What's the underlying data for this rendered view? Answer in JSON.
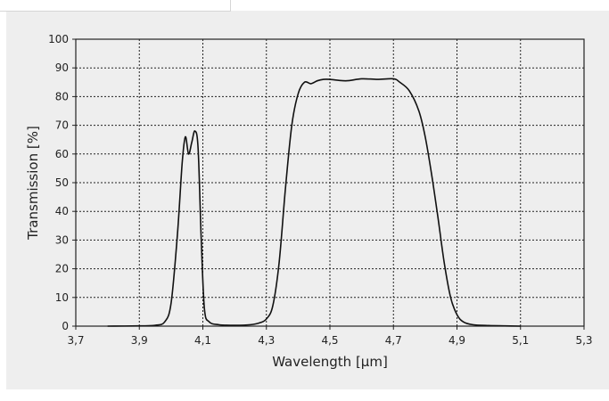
{
  "chart_data": {
    "type": "line",
    "title": "",
    "xlabel": "Wavelength [µm]",
    "ylabel": "Transmission [%]",
    "xlim": [
      3.7,
      5.3
    ],
    "ylim": [
      0,
      100
    ],
    "x_ticks": [
      "3,7",
      "3,9",
      "4,1",
      "4,3",
      "4,5",
      "4,7",
      "4,9",
      "5,1",
      "5,3"
    ],
    "y_ticks": [
      "0",
      "10",
      "20",
      "30",
      "40",
      "50",
      "60",
      "70",
      "80",
      "90",
      "100"
    ],
    "grid": true,
    "series": [
      {
        "x": [
          3.8,
          3.9,
          3.95,
          3.98,
          4.0,
          4.02,
          4.035,
          4.045,
          4.055,
          4.065,
          4.075,
          4.085,
          4.095,
          4.105,
          4.12,
          4.15,
          4.2,
          4.25,
          4.28,
          4.3,
          4.32,
          4.34,
          4.36,
          4.38,
          4.4,
          4.42,
          4.44,
          4.46,
          4.48,
          4.5,
          4.55,
          4.6,
          4.65,
          4.7,
          4.72,
          4.75,
          4.78,
          4.8,
          4.82,
          4.84,
          4.86,
          4.88,
          4.9,
          4.92,
          4.95,
          5.0,
          5.05,
          5.1
        ],
        "y": [
          0,
          0.1,
          0.3,
          1.5,
          8,
          32,
          57,
          66,
          60,
          64,
          68,
          62,
          30,
          6,
          1.5,
          0.5,
          0.3,
          0.5,
          1.2,
          2.5,
          7,
          22,
          48,
          70,
          81,
          85,
          84.5,
          85.5,
          86,
          86,
          85.5,
          86.2,
          86,
          86.2,
          85,
          82,
          75,
          66,
          53,
          38,
          22,
          10,
          4,
          1.5,
          0.5,
          0.2,
          0.1,
          0
        ]
      }
    ],
    "line_color": "#111111",
    "grid_color": "#222222",
    "panel_color": "#eeeeee"
  }
}
